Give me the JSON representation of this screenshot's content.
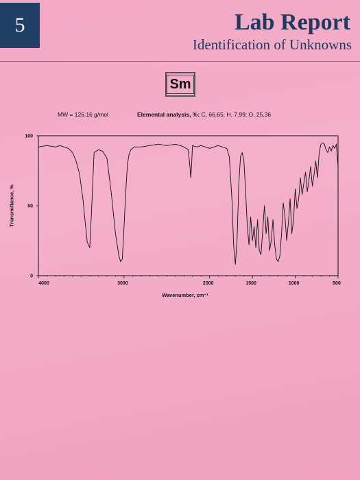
{
  "header": {
    "chapter_number": "5",
    "title": "Lab Report",
    "subtitle": "Identification of Unknowns"
  },
  "compound": {
    "label": "Sm"
  },
  "info": {
    "mw": "MW = 126.16 g/mol",
    "elemental_label": "Elemental analysis, %:",
    "elemental_values": " C, 66.65; H, 7.99; O, 25.36"
  },
  "chart_data": {
    "type": "line",
    "xlabel": "Wavenumber, cm⁻¹",
    "ylabel": "Transmittance, %",
    "xlim": [
      4000,
      500
    ],
    "ylim": [
      0,
      100
    ],
    "xticks": [
      "4000",
      "3000",
      "2000",
      "1500",
      "1000",
      "500"
    ],
    "yticks": [
      "0",
      "50",
      "100"
    ],
    "grid": false,
    "series": [
      {
        "x": [
          4000,
          3900,
          3800,
          3750,
          3700,
          3650,
          3600,
          3560,
          3520,
          3480,
          3450,
          3430,
          3400,
          3380,
          3350,
          3300,
          3250,
          3200,
          3150,
          3100,
          3060,
          3040,
          3020,
          3000,
          2980,
          2960,
          2940,
          2920,
          2900,
          2880,
          2860,
          2800,
          2700,
          2600,
          2500,
          2400,
          2300,
          2250,
          2230,
          2220,
          2210,
          2200,
          2150,
          2100,
          2050,
          2000,
          1950,
          1900,
          1850,
          1800,
          1770,
          1740,
          1720,
          1700,
          1680,
          1660,
          1640,
          1620,
          1600,
          1580,
          1560,
          1540,
          1520,
          1500,
          1480,
          1460,
          1440,
          1420,
          1400,
          1380,
          1360,
          1340,
          1320,
          1300,
          1280,
          1260,
          1240,
          1220,
          1200,
          1180,
          1160,
          1140,
          1120,
          1100,
          1080,
          1060,
          1040,
          1020,
          1000,
          980,
          960,
          940,
          920,
          900,
          880,
          860,
          840,
          820,
          800,
          780,
          760,
          740,
          720,
          700,
          680,
          660,
          640,
          620,
          600,
          580,
          560,
          540,
          520,
          500
        ],
        "y": [
          92,
          93,
          92,
          93,
          92,
          91,
          88,
          82,
          73,
          55,
          36,
          24,
          20,
          45,
          88,
          90,
          89,
          84,
          60,
          30,
          14,
          10,
          12,
          35,
          60,
          80,
          87,
          90,
          91,
          92,
          92,
          92,
          93,
          94,
          93,
          94,
          92,
          90,
          78,
          70,
          80,
          93,
          92,
          93,
          92,
          91,
          92,
          93,
          92,
          91,
          85,
          55,
          22,
          8,
          25,
          65,
          85,
          88,
          82,
          60,
          35,
          22,
          42,
          25,
          35,
          20,
          40,
          18,
          15,
          32,
          50,
          30,
          42,
          18,
          25,
          40,
          22,
          12,
          10,
          14,
          30,
          52,
          42,
          25,
          38,
          55,
          30,
          40,
          62,
          48,
          55,
          70,
          58,
          66,
          74,
          60,
          68,
          78,
          64,
          72,
          82,
          70,
          88,
          94,
          95,
          94,
          90,
          88,
          92,
          89,
          93,
          91,
          94,
          78
        ]
      }
    ]
  }
}
